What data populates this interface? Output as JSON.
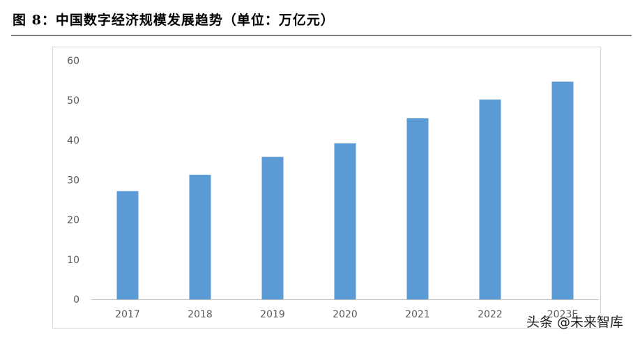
{
  "figure": {
    "title": "图 8：中国数字经济规模发展趋势（单位：万亿元）"
  },
  "watermark": "头条 @未来智库",
  "colors": {
    "bar": "#5b9bd5",
    "axis_text": "#595959",
    "axis_line": "#bfbfbf",
    "border": "#d9d9d9"
  },
  "chart_data": {
    "type": "bar",
    "title": "",
    "xlabel": "",
    "ylabel": "",
    "categories": [
      "2017",
      "2018",
      "2019",
      "2020",
      "2021",
      "2022",
      "2023E"
    ],
    "values": [
      27.2,
      31.3,
      35.8,
      39.2,
      45.5,
      50.2,
      54.7
    ],
    "ylim": [
      0,
      60
    ],
    "yticks": [
      0,
      10,
      20,
      30,
      40,
      50,
      60
    ],
    "grid": false,
    "legend": "none"
  }
}
